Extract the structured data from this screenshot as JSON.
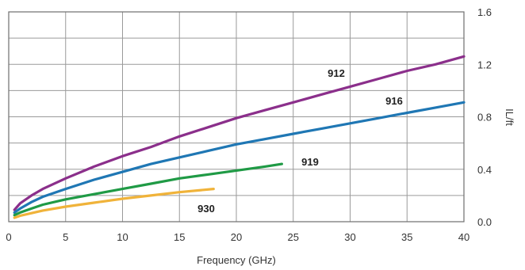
{
  "chart_data": {
    "type": "line",
    "title": "",
    "xlabel": "Frequency (GHz)",
    "ylabel": "IL/ft",
    "xlim": [
      0,
      40
    ],
    "ylim": [
      0,
      1.6
    ],
    "x_ticks": [
      0,
      5,
      10,
      15,
      20,
      25,
      30,
      35,
      40
    ],
    "y_ticks": [
      0.0,
      0.4,
      0.8,
      1.2,
      1.6
    ],
    "y_tick_labels": [
      "0.0",
      "0.4",
      "0.8",
      "1.2",
      "1.6"
    ],
    "y_axis_side": "right",
    "grid": true,
    "legend": "inline labels",
    "series": [
      {
        "name": "912",
        "color": "#8b2f8b",
        "x": [
          0.5,
          1,
          2,
          3,
          5,
          7.5,
          10,
          12.5,
          15,
          17.5,
          20,
          22.5,
          25,
          27.5,
          30,
          32.5,
          35,
          37.5,
          40
        ],
        "y": [
          0.09,
          0.14,
          0.2,
          0.25,
          0.33,
          0.42,
          0.5,
          0.57,
          0.65,
          0.72,
          0.79,
          0.85,
          0.91,
          0.97,
          1.03,
          1.09,
          1.15,
          1.2,
          1.26
        ]
      },
      {
        "name": "916",
        "color": "#1f77b4",
        "x": [
          0.5,
          1,
          2,
          3,
          5,
          7.5,
          10,
          12.5,
          15,
          17.5,
          20,
          22.5,
          25,
          27.5,
          30,
          32.5,
          35,
          37.5,
          40
        ],
        "y": [
          0.07,
          0.1,
          0.15,
          0.19,
          0.25,
          0.32,
          0.38,
          0.44,
          0.49,
          0.54,
          0.59,
          0.63,
          0.67,
          0.71,
          0.75,
          0.79,
          0.83,
          0.87,
          0.91
        ]
      },
      {
        "name": "919",
        "color": "#1f9a45",
        "x": [
          0.5,
          1,
          2,
          3,
          5,
          7.5,
          10,
          12.5,
          15,
          17.5,
          20,
          22.5,
          24
        ],
        "y": [
          0.05,
          0.07,
          0.1,
          0.13,
          0.17,
          0.21,
          0.25,
          0.29,
          0.33,
          0.36,
          0.39,
          0.42,
          0.44
        ]
      },
      {
        "name": "930",
        "color": "#f0b33a",
        "x": [
          0.5,
          1,
          2,
          3,
          5,
          7.5,
          10,
          12.5,
          15,
          18
        ],
        "y": [
          0.03,
          0.045,
          0.065,
          0.085,
          0.115,
          0.145,
          0.175,
          0.2,
          0.225,
          0.25
        ]
      }
    ]
  }
}
